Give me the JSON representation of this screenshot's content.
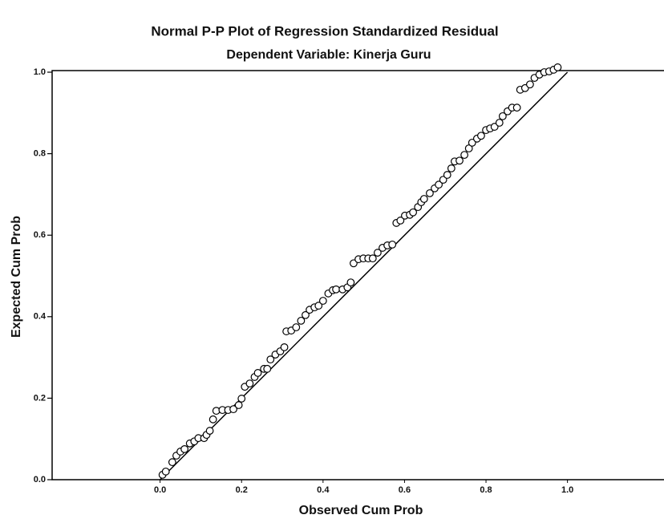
{
  "chart_data": {
    "type": "scatter",
    "title": "Normal P-P Plot of Regression Standardized Residual",
    "subtitle": "Dependent Variable: Kinerja Guru",
    "x_label": "Observed Cum Prob",
    "y_label": "Expected Cum Prob",
    "x": [
      0.006,
      0.014,
      0.03,
      0.04,
      0.05,
      0.06,
      0.073,
      0.084,
      0.094,
      0.108,
      0.114,
      0.122,
      0.13,
      0.138,
      0.153,
      0.167,
      0.18,
      0.193,
      0.2,
      0.208,
      0.22,
      0.232,
      0.24,
      0.255,
      0.263,
      0.271,
      0.283,
      0.295,
      0.305,
      0.31,
      0.322,
      0.334,
      0.346,
      0.357,
      0.367,
      0.379,
      0.389,
      0.4,
      0.413,
      0.424,
      0.432,
      0.448,
      0.46,
      0.468,
      0.475,
      0.487,
      0.499,
      0.511,
      0.522,
      0.534,
      0.546,
      0.558,
      0.57,
      0.58,
      0.59,
      0.601,
      0.613,
      0.621,
      0.633,
      0.641,
      0.648,
      0.662,
      0.674,
      0.684,
      0.695,
      0.705,
      0.715,
      0.723,
      0.735,
      0.747,
      0.758,
      0.766,
      0.778,
      0.788,
      0.8,
      0.81,
      0.821,
      0.833,
      0.841,
      0.853,
      0.864,
      0.876,
      0.884,
      0.896,
      0.908,
      0.919,
      0.931,
      0.943,
      0.955,
      0.966,
      0.976
    ],
    "values": [
      0.012,
      0.02,
      0.043,
      0.059,
      0.069,
      0.075,
      0.089,
      0.094,
      0.102,
      0.102,
      0.11,
      0.12,
      0.148,
      0.169,
      0.171,
      0.171,
      0.173,
      0.183,
      0.199,
      0.228,
      0.236,
      0.252,
      0.262,
      0.272,
      0.272,
      0.295,
      0.307,
      0.315,
      0.325,
      0.364,
      0.366,
      0.374,
      0.39,
      0.404,
      0.417,
      0.423,
      0.427,
      0.439,
      0.457,
      0.465,
      0.467,
      0.467,
      0.472,
      0.484,
      0.531,
      0.541,
      0.543,
      0.543,
      0.543,
      0.557,
      0.569,
      0.575,
      0.577,
      0.63,
      0.636,
      0.648,
      0.65,
      0.656,
      0.669,
      0.681,
      0.689,
      0.703,
      0.715,
      0.724,
      0.736,
      0.748,
      0.764,
      0.781,
      0.783,
      0.797,
      0.813,
      0.827,
      0.837,
      0.844,
      0.858,
      0.862,
      0.866,
      0.876,
      0.892,
      0.904,
      0.913,
      0.913,
      0.957,
      0.961,
      0.97,
      0.986,
      0.994,
      1.0,
      1.002,
      1.006,
      1.012
    ],
    "xlim": [
      -0.265,
      1.233
    ],
    "ylim": [
      0,
      1.0
    ],
    "xticks": [
      {
        "value": 0,
        "label": "0.0"
      },
      0.2,
      0.4,
      0.6,
      0.8,
      {
        "value": 1,
        "label": "1.0"
      }
    ],
    "yticks": [
      {
        "value": 0,
        "label": "0.0"
      },
      0.2,
      0.4,
      0.6,
      0.8,
      {
        "value": 1,
        "label": "1.0"
      }
    ],
    "reference_line": true,
    "color": "#000000"
  }
}
